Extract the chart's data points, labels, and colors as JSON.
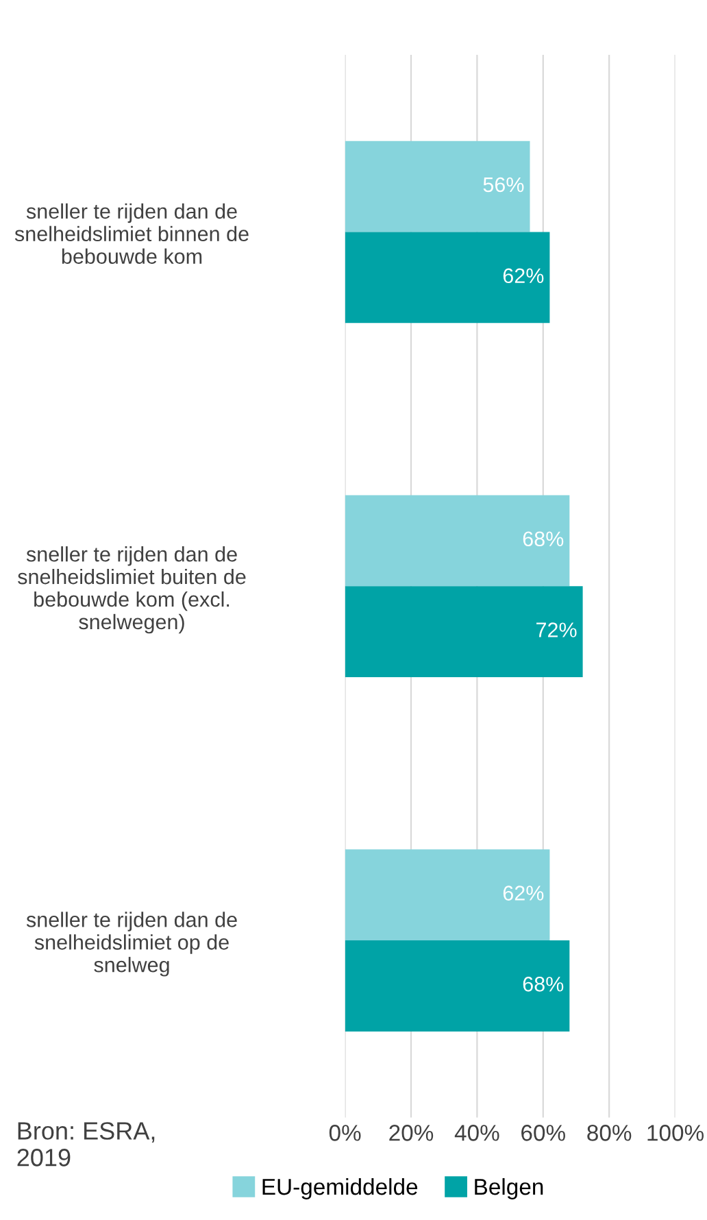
{
  "chart_data": {
    "type": "bar",
    "orientation": "horizontal",
    "categories": [
      "sneller te rijden dan de snelheidslimiet binnen de bebouwde kom",
      "sneller te rijden dan de snelheidslimiet buiten de bebouwde kom (excl. snelwegen)",
      "sneller te rijden dan de snelheidslimiet op de snelweg"
    ],
    "series": [
      {
        "name": "EU-gemiddelde",
        "color": "#86d4dc",
        "values": [
          56,
          68,
          62
        ],
        "value_labels": [
          "56%",
          "68%",
          "62%"
        ]
      },
      {
        "name": "Belgen",
        "color": "#00a3a6",
        "values": [
          62,
          72,
          68
        ],
        "value_labels": [
          "62%",
          "72%",
          "68%"
        ]
      }
    ],
    "xlim": [
      0,
      100
    ],
    "xticks": [
      {
        "value": 0,
        "label": "0%"
      },
      {
        "value": 20,
        "label": "20%"
      },
      {
        "value": 40,
        "label": "40%"
      },
      {
        "value": 60,
        "label": "60%"
      },
      {
        "value": 80,
        "label": "80%"
      },
      {
        "value": 100,
        "label": "100%"
      }
    ],
    "grid": "x",
    "legend": "bottom",
    "annotations": [
      "Bron: ESRA, 2019"
    ]
  }
}
